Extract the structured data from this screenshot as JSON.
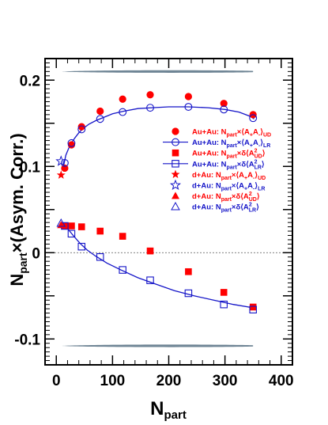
{
  "chart_data": {
    "type": "scatter",
    "xlabel": "N",
    "xlabel_sub": "part",
    "ylabel_parts": [
      "N",
      "part",
      "×(Asym. Corr.)"
    ],
    "xlim": [
      -20,
      420
    ],
    "ylim": [
      -0.13,
      0.225
    ],
    "x_ticks": [
      0,
      100,
      200,
      300,
      400
    ],
    "y_ticks": [
      0.2,
      0.1,
      0,
      -0.1
    ],
    "y_tick_labels": [
      "0.2",
      "0.1",
      "0",
      "-0.1"
    ],
    "grid": false,
    "legend_position": "middle-right",
    "colors": {
      "red": "#ff0000",
      "blue": "#1515c8",
      "band": "#6f8595"
    },
    "series": [
      {
        "name": "Au+Au: N_part×⟨A+A-⟩_UD",
        "legend": {
          "main": "Au+Au: N",
          "parts": [
            [
              "sub",
              "part"
            ],
            [
              "text",
              "×⟨A"
            ],
            [
              "sub",
              "+"
            ],
            [
              "text",
              "A"
            ],
            [
              "sub",
              "-"
            ],
            [
              "text",
              "⟩"
            ],
            [
              "sub",
              "UD"
            ]
          ]
        },
        "marker": "filled-circle",
        "color": "#ff0000",
        "x": [
          15,
          27,
          45,
          78,
          118,
          167,
          235,
          298,
          350
        ],
        "y": [
          0.098,
          0.125,
          0.146,
          0.164,
          0.178,
          0.183,
          0.181,
          0.173,
          0.16
        ]
      },
      {
        "name": "Au+Au: N_part×⟨A+A-⟩_LR",
        "legend": {
          "main": "Au+Au: N",
          "parts": [
            [
              "sub",
              "part"
            ],
            [
              "text",
              "×⟨A"
            ],
            [
              "sub",
              "+"
            ],
            [
              "text",
              "A"
            ],
            [
              "sub",
              "-"
            ],
            [
              "text",
              "⟩"
            ],
            [
              "sub",
              "LR"
            ]
          ]
        },
        "marker": "open-circle",
        "color": "#1515c8",
        "line": true,
        "x": [
          15,
          27,
          45,
          78,
          118,
          167,
          235,
          298,
          350
        ],
        "y": [
          0.104,
          0.127,
          0.143,
          0.155,
          0.163,
          0.168,
          0.169,
          0.166,
          0.156
        ],
        "curve_x": [
          13,
          17,
          22,
          27,
          33,
          40,
          48,
          58,
          70,
          85,
          100,
          120,
          145,
          170,
          200,
          235,
          270,
          300,
          325,
          345,
          352
        ],
        "curve_y": [
          0.101,
          0.113,
          0.121,
          0.127,
          0.133,
          0.139,
          0.144,
          0.149,
          0.153,
          0.157,
          0.161,
          0.164,
          0.167,
          0.168,
          0.169,
          0.169,
          0.168,
          0.166,
          0.163,
          0.158,
          0.155
        ]
      },
      {
        "name": "Au+Au: N_part×δ⟨A²_UD⟩",
        "legend": {
          "main": "Au+Au: N",
          "parts": [
            [
              "sub",
              "part"
            ],
            [
              "text",
              "×δ⟨A"
            ],
            [
              "supsub",
              "2|UD"
            ],
            [
              "text",
              "⟩"
            ]
          ]
        },
        "marker": "filled-square",
        "color": "#ff0000",
        "x": [
          15,
          27,
          45,
          78,
          118,
          167,
          235,
          298,
          350
        ],
        "y": [
          0.031,
          0.031,
          0.03,
          0.025,
          0.019,
          0.002,
          -0.022,
          -0.046,
          -0.063
        ]
      },
      {
        "name": "Au+Au: N_part×δ⟨A²_LR⟩",
        "legend": {
          "main": "Au+Au: N",
          "parts": [
            [
              "sub",
              "part"
            ],
            [
              "text",
              "×δ⟨A"
            ],
            [
              "supsub",
              "2|LR"
            ],
            [
              "text",
              "⟩"
            ]
          ]
        },
        "marker": "open-square",
        "color": "#1515c8",
        "line": true,
        "x": [
          15,
          27,
          45,
          78,
          118,
          167,
          235,
          298,
          350
        ],
        "y": [
          0.031,
          0.022,
          0.007,
          -0.005,
          -0.02,
          -0.032,
          -0.047,
          -0.06,
          -0.066
        ],
        "curve_x": [
          12,
          20,
          30,
          42,
          55,
          70,
          90,
          115,
          145,
          175,
          210,
          245,
          280,
          315,
          352
        ],
        "curve_y": [
          0.033,
          0.028,
          0.02,
          0.011,
          0.003,
          -0.004,
          -0.012,
          -0.02,
          -0.029,
          -0.036,
          -0.044,
          -0.05,
          -0.055,
          -0.06,
          -0.064
        ]
      },
      {
        "name": "d+Au: N_part×⟨A+A-⟩_UD",
        "legend": {
          "main": "d+Au: N",
          "parts": [
            [
              "sub",
              "part"
            ],
            [
              "text",
              "×⟨A"
            ],
            [
              "sub",
              "+"
            ],
            [
              "text",
              "A"
            ],
            [
              "sub",
              "-"
            ],
            [
              "text",
              "⟩"
            ],
            [
              "sub",
              "UD"
            ]
          ]
        },
        "marker": "filled-star",
        "color": "#ff0000",
        "x": [
          8.5
        ],
        "y": [
          0.09
        ]
      },
      {
        "name": "d+Au: N_part×⟨A+A-⟩_LR",
        "legend": {
          "main": "d+Au: N",
          "parts": [
            [
              "sub",
              "part"
            ],
            [
              "text",
              "×⟨A"
            ],
            [
              "sub",
              "+"
            ],
            [
              "text",
              "A"
            ],
            [
              "sub",
              "-"
            ],
            [
              "text",
              "⟩"
            ],
            [
              "sub",
              "LR"
            ]
          ]
        },
        "marker": "open-star",
        "color": "#1515c8",
        "x": [
          8.5
        ],
        "y": [
          0.106
        ]
      },
      {
        "name": "d+Au: N_part×δ⟨A²_UD⟩",
        "legend": {
          "main": "d+Au: N",
          "parts": [
            [
              "sub",
              "part"
            ],
            [
              "text",
              "×δ⟨A"
            ],
            [
              "supsub",
              "2|UD"
            ],
            [
              "text",
              "⟩"
            ]
          ]
        },
        "marker": "filled-triangle",
        "color": "#ff0000",
        "x": [
          8.5
        ],
        "y": [
          0.032
        ]
      },
      {
        "name": "d+Au: N_part×δ⟨A²_LR⟩",
        "legend": {
          "main": "d+Au: N",
          "parts": [
            [
              "sub",
              "part"
            ],
            [
              "text",
              "×δ⟨A"
            ],
            [
              "supsub",
              "2|LR"
            ],
            [
              "text",
              "⟩"
            ]
          ]
        },
        "marker": "open-triangle",
        "color": "#1515c8",
        "x": [
          8.5
        ],
        "y": [
          0.034
        ]
      }
    ],
    "bands": [
      {
        "x": [
          10,
          350
        ],
        "y_center": 0.21,
        "half_width": 0.0018
      },
      {
        "x": [
          10,
          350
        ],
        "y_center": -0.108,
        "half_width": 0.0018
      }
    ]
  }
}
